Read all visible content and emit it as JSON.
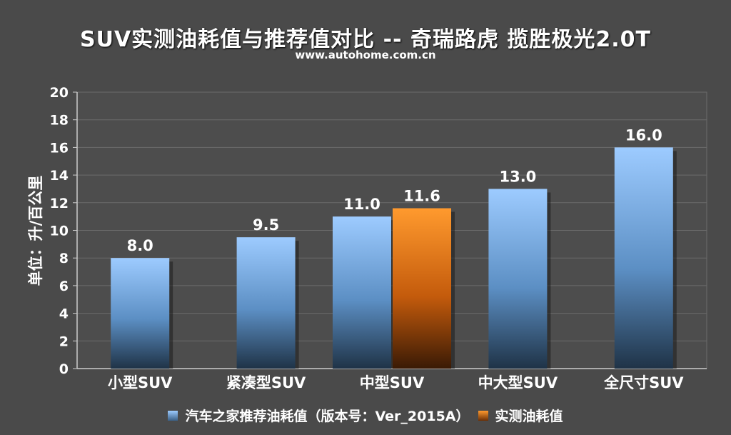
{
  "chart_data": {
    "type": "bar",
    "title": "SUV实测油耗值与推荐值对比 -- 奇瑞路虎 揽胜极光2.0T",
    "subtitle": "www.autohome.com.cn",
    "ylabel": "单位：升/百公里",
    "xlabel": "",
    "ylim": [
      0,
      20
    ],
    "yticks": [
      0,
      2,
      4,
      6,
      8,
      10,
      12,
      14,
      16,
      18,
      20
    ],
    "grid": true,
    "legend_position": "bottom",
    "categories": [
      "小型SUV",
      "紧凑型SUV",
      "中型SUV",
      "中大型SUV",
      "全尺寸SUV"
    ],
    "series": [
      {
        "name": "汽车之家推荐油耗值（版本号：Ver_2015A）",
        "color": "#8ec0f5",
        "values": [
          8.0,
          9.5,
          11.0,
          13.0,
          16.0
        ],
        "labels": [
          "8.0",
          "9.5",
          "11.0",
          "13.0",
          "16.0"
        ]
      },
      {
        "name": "实测油耗值",
        "color": "#ff8c1a",
        "values": [
          null,
          null,
          11.6,
          null,
          null
        ],
        "labels": [
          "",
          "",
          "11.6",
          "",
          ""
        ]
      }
    ]
  }
}
